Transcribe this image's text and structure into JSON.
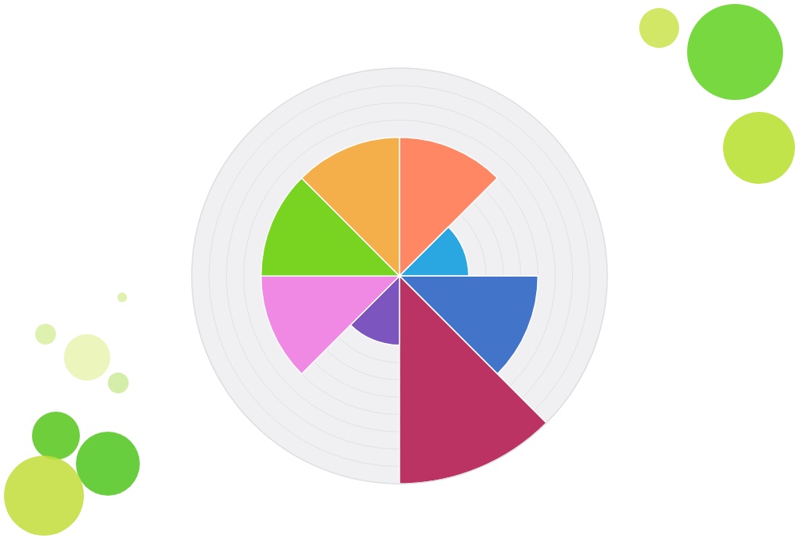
{
  "chart_data": {
    "type": "barpolar",
    "values": [
      8,
      4,
      8,
      12,
      4,
      8,
      8,
      8
    ],
    "colors": [
      "#ff8763",
      "#2aa7e0",
      "#4275c9",
      "#bb3363",
      "#7c55bf",
      "#ef89e4",
      "#79d422",
      "#f5af4a"
    ],
    "ylim": [
      0,
      12
    ],
    "yticks": [
      0,
      1,
      2,
      3,
      4,
      5,
      6,
      7,
      8,
      9,
      10,
      11,
      12
    ],
    "grid": true,
    "tick_labels": false
  }
}
